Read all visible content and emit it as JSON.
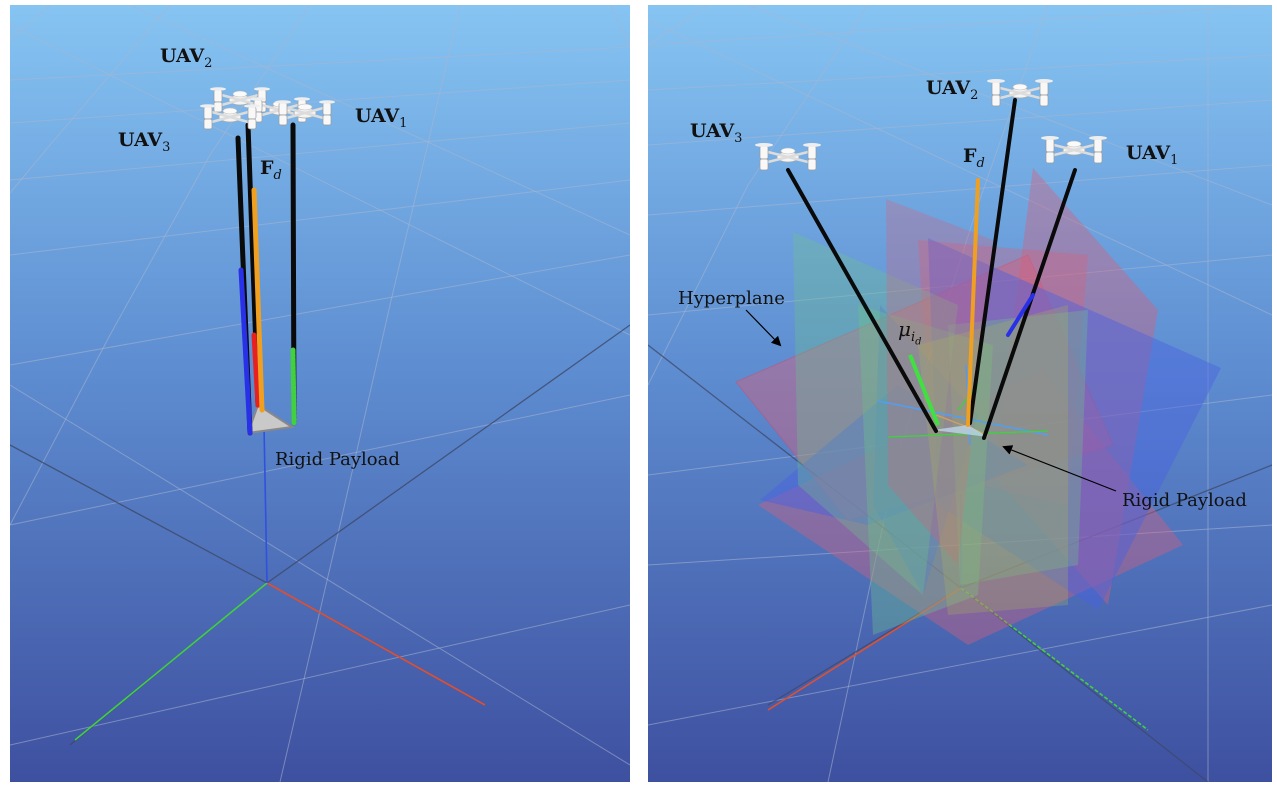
{
  "left": {
    "uav1": {
      "name": "UAV",
      "sub": "1"
    },
    "uav2": {
      "name": "UAV",
      "sub": "2"
    },
    "uav3": {
      "name": "UAV",
      "sub": "3"
    },
    "force": {
      "name": "F",
      "sub": "d"
    },
    "payload": "Rigid Payload"
  },
  "right": {
    "uav1": {
      "name": "UAV",
      "sub": "1"
    },
    "uav2": {
      "name": "UAV",
      "sub": "2"
    },
    "uav3": {
      "name": "UAV",
      "sub": "3"
    },
    "force": {
      "name": "F",
      "sub": "d"
    },
    "hyperplane": "Hyperplane",
    "mu": {
      "name": "μ",
      "sub": "i",
      "subsub": "d"
    },
    "payload": "Rigid Payload"
  },
  "colors": {
    "sky_top": "#86c4f2",
    "sky_bottom": "#3a4f9e",
    "cable": "#0a0a0a",
    "force": "#f0a020",
    "axis_x": "#e05030",
    "axis_y": "#40d040",
    "axis_z": "#3050e0",
    "plane_red": "#d8607a",
    "plane_blue": "#4a62e0",
    "plane_green": "#6cc08c"
  }
}
